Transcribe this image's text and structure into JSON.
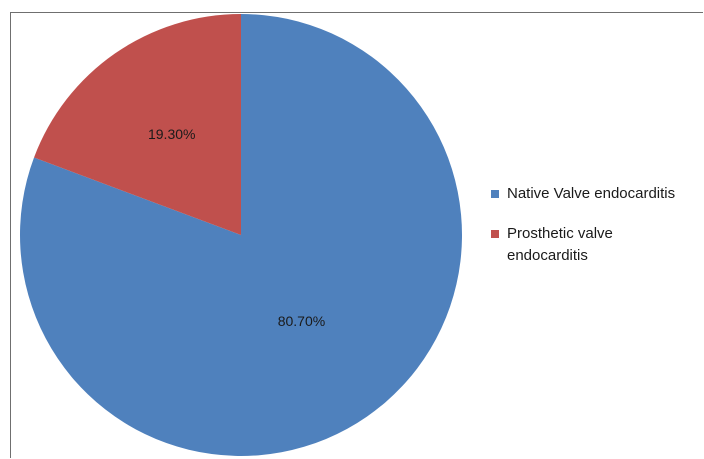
{
  "chart_data": {
    "type": "pie",
    "categories": [
      "Native Valve endocarditis",
      "Prosthetic valve endocarditis"
    ],
    "values": [
      80.7,
      19.3
    ],
    "data_labels": [
      "80.70%",
      "19.30%"
    ],
    "colors": [
      "#4f81bd",
      "#c0504d"
    ],
    "title": "",
    "legend_position": "right",
    "start_angle": "top, clockwise"
  }
}
